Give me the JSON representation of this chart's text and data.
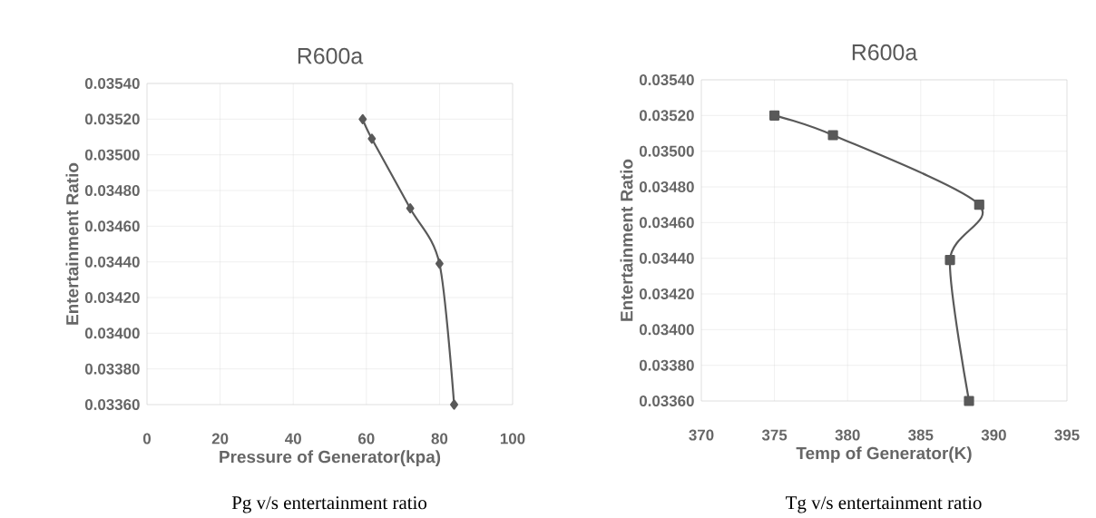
{
  "chart_data": [
    {
      "type": "line",
      "title": "R600a",
      "xlabel": "Pressure of Generator(kpa)",
      "ylabel": "Entertainment Ratio",
      "x": [
        59,
        61.5,
        72,
        80,
        84
      ],
      "series": [
        {
          "color": "#595959",
          "values": [
            0.0352,
            0.03509,
            0.0347,
            0.03439,
            0.0336
          ]
        }
      ],
      "marker": "diamond",
      "grid": true,
      "xlim": [
        0,
        100
      ],
      "xticks": [
        0,
        20,
        40,
        60,
        80,
        100
      ],
      "ylim": [
        0.0336,
        0.0354
      ],
      "yticks": [
        {
          "value": 0.0336,
          "label": "0.03360"
        },
        {
          "value": 0.0338,
          "label": "0.03380"
        },
        {
          "value": 0.034,
          "label": "0.03400"
        },
        {
          "value": 0.0342,
          "label": "0.03420"
        },
        {
          "value": 0.0344,
          "label": "0.03440"
        },
        {
          "value": 0.0346,
          "label": "0.03460"
        },
        {
          "value": 0.0348,
          "label": "0.03480"
        },
        {
          "value": 0.035,
          "label": "0.03500"
        },
        {
          "value": 0.0352,
          "label": "0.03520"
        },
        {
          "value": 0.0354,
          "label": "0.03540"
        }
      ],
      "annotations": [
        "Pg v/s entertainment ratio"
      ]
    },
    {
      "type": "line",
      "title": "R600a",
      "xlabel": "Temp of Generator(K)",
      "ylabel": "Entertainment Ratio",
      "x": [
        375,
        379,
        389,
        387,
        388.3
      ],
      "series": [
        {
          "color": "#595959",
          "values": [
            0.0352,
            0.03509,
            0.0347,
            0.03439,
            0.0336
          ]
        }
      ],
      "marker": "square",
      "grid": true,
      "xlim": [
        370,
        395
      ],
      "xticks": [
        370,
        375,
        380,
        385,
        390,
        395
      ],
      "ylim": [
        0.0336,
        0.0354
      ],
      "yticks": [
        {
          "value": 0.0336,
          "label": "0.03360"
        },
        {
          "value": 0.0338,
          "label": "0.03380"
        },
        {
          "value": 0.034,
          "label": "0.03400"
        },
        {
          "value": 0.0342,
          "label": "0.03420"
        },
        {
          "value": 0.0344,
          "label": "0.03440"
        },
        {
          "value": 0.0346,
          "label": "0.03460"
        },
        {
          "value": 0.0348,
          "label": "0.03480"
        },
        {
          "value": 0.035,
          "label": "0.03500"
        },
        {
          "value": 0.0352,
          "label": "0.03520"
        },
        {
          "value": 0.0354,
          "label": "0.03540"
        }
      ],
      "annotations": [
        "Tg v/s entertainment ratio"
      ]
    }
  ]
}
